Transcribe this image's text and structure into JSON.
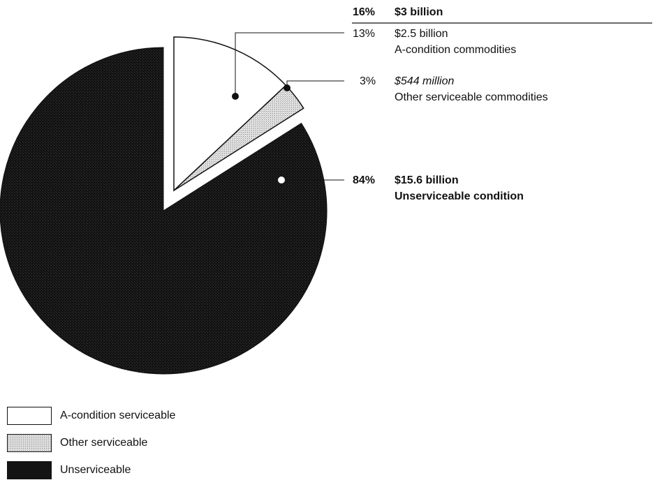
{
  "chart_data": {
    "type": "pie",
    "slices": [
      {
        "key": "a_condition",
        "label": "A-condition serviceable",
        "percent": 13,
        "value_text": "$2.5 billion",
        "detail": "A-condition commodities",
        "color": "#ffffff",
        "pattern": "none"
      },
      {
        "key": "other",
        "label": "Other serviceable",
        "percent": 3,
        "value_text": "$544 million",
        "detail": "Other serviceable commodities",
        "color": "#dcdcdc",
        "pattern": "dots"
      },
      {
        "key": "unserviceable",
        "label": "Unserviceable",
        "percent": 84,
        "value_text": "$15.6 billion",
        "detail": "Unserviceable condition",
        "color": "#141414",
        "pattern": "dark-speckle"
      }
    ],
    "serviceable_total": {
      "percent_text": "16%",
      "value_text": "$3 billion"
    },
    "annotations": {
      "a_condition": {
        "percent_text": "13%",
        "value_text": "$2.5 billion",
        "detail": "A-condition commodities"
      },
      "other": {
        "percent_text": "3%",
        "value_text": "$544 million",
        "detail": "Other serviceable commodities"
      },
      "unserviceable": {
        "percent_text": "84%",
        "value_text": "$15.6 billion",
        "detail": "Unserviceable condition"
      }
    },
    "exploded_slices": [
      "a_condition",
      "other"
    ]
  },
  "legend": {
    "items": [
      {
        "label": "A-condition serviceable",
        "color": "#ffffff"
      },
      {
        "label": "Other serviceable",
        "color": "#dcdcdc"
      },
      {
        "label": "Unserviceable",
        "color": "#141414"
      }
    ]
  }
}
